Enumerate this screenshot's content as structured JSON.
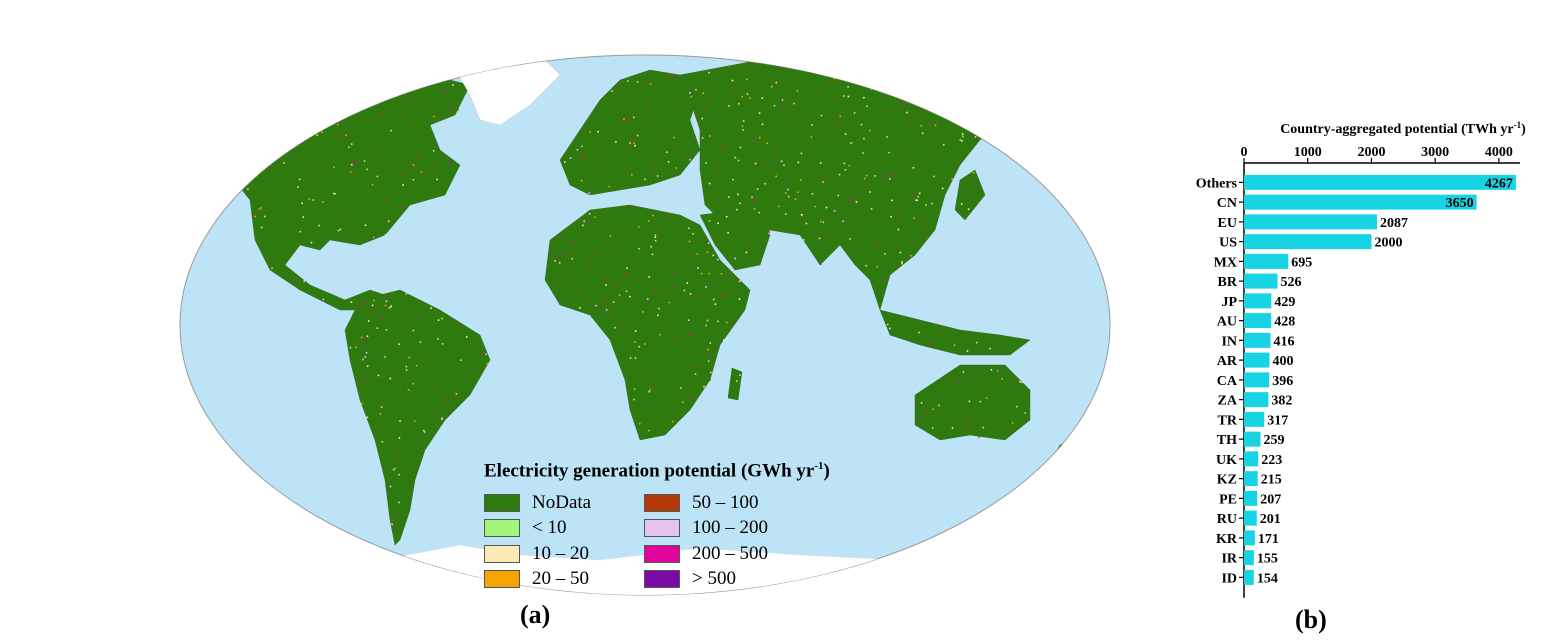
{
  "map": {
    "panel_label": "(a)",
    "legend_title": "Electricity generation potential (GWh yr",
    "legend_title_sup": "-1",
    "legend_title_end": ")",
    "legend": [
      {
        "label": "NoData",
        "color": "#2e7a0f"
      },
      {
        "label": "< 10",
        "color": "#a2f57a"
      },
      {
        "label": "10 – 20",
        "color": "#fde9b4"
      },
      {
        "label": "20 – 50",
        "color": "#f6a500"
      },
      {
        "label": "50 – 100",
        "color": "#b33a08"
      },
      {
        "label": "100 – 200",
        "color": "#e8c3f2"
      },
      {
        "label": "200 – 500",
        "color": "#e2039c"
      },
      {
        "label": "> 500",
        "color": "#7b0aa6"
      }
    ],
    "ocean_color": "#bde3f7",
    "land_color": "#2e7a0f"
  },
  "chart_panel_label": "(b)",
  "chart_data": {
    "type": "bar",
    "orientation": "horizontal",
    "title": "Country-aggregated potential (TWh yr",
    "title_sup": "-1",
    "title_end": ")",
    "categories": [
      "Others",
      "CN",
      "EU",
      "US",
      "MX",
      "BR",
      "JP",
      "AU",
      "IN",
      "AR",
      "CA",
      "ZA",
      "TR",
      "TH",
      "UK",
      "KZ",
      "PE",
      "RU",
      "KR",
      "IR",
      "ID"
    ],
    "values": [
      4267,
      3650,
      2087,
      2000,
      695,
      526,
      429,
      428,
      416,
      400,
      396,
      382,
      317,
      259,
      223,
      215,
      207,
      201,
      171,
      155,
      154
    ],
    "ticks": [
      0,
      1000,
      2000,
      3000,
      4000
    ],
    "xlim": [
      0,
      4300
    ],
    "axis_position": "top",
    "bar_color": "#17d3e3"
  }
}
